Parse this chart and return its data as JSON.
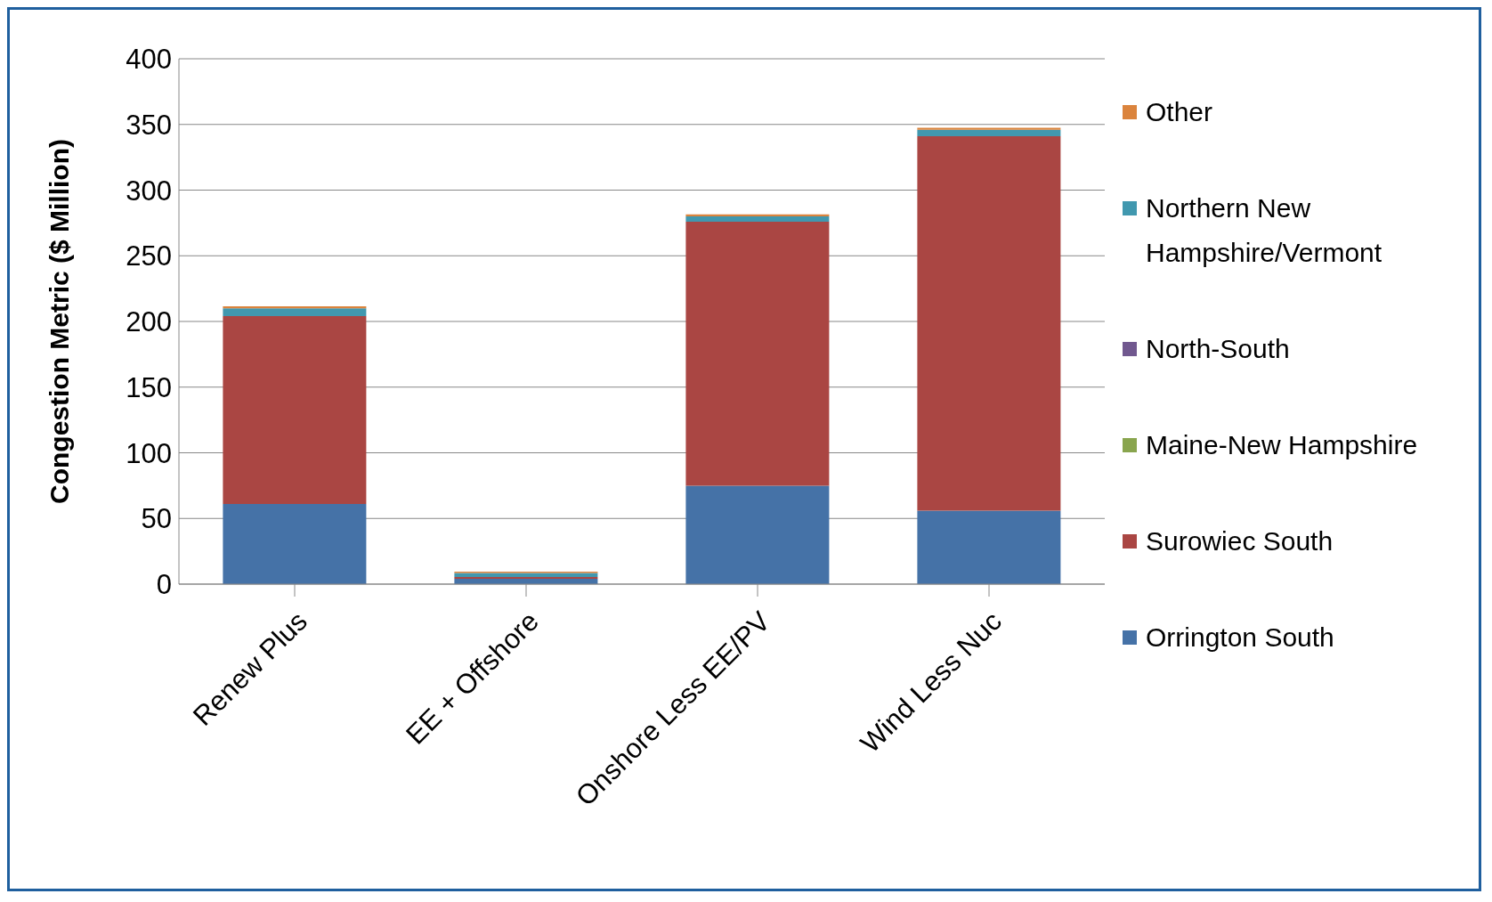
{
  "chart_data": {
    "type": "bar",
    "stacked": true,
    "ylabel": "Congestion Metric ($ Million)",
    "categories": [
      "Renew Plus",
      "EE + Offshore",
      "Onshore Less EE/PV",
      "Wind Less Nuc"
    ],
    "series": [
      {
        "name": "Orrington South",
        "color": "#4572a7",
        "values": [
          61,
          4,
          75,
          56
        ]
      },
      {
        "name": "Surowiec South",
        "color": "#aa4643",
        "values": [
          143,
          1.5,
          201,
          285
        ]
      },
      {
        "name": "Maine-New Hampshire",
        "color": "#89a54e",
        "values": [
          0,
          0,
          0,
          0
        ]
      },
      {
        "name": "North-South",
        "color": "#71588f",
        "values": [
          0,
          0,
          0,
          0
        ]
      },
      {
        "name": "Northern New Hampshire/Vermont",
        "color": "#4198af",
        "values": [
          6,
          3,
          4,
          5
        ]
      },
      {
        "name": "Other",
        "color": "#db843d",
        "values": [
          1.5,
          1,
          1.5,
          1.5
        ]
      }
    ],
    "ylim": [
      0,
      400
    ],
    "yticks": [
      0,
      50,
      100,
      150,
      200,
      250,
      300,
      350,
      400
    ],
    "grid": "y",
    "legend": "right"
  }
}
